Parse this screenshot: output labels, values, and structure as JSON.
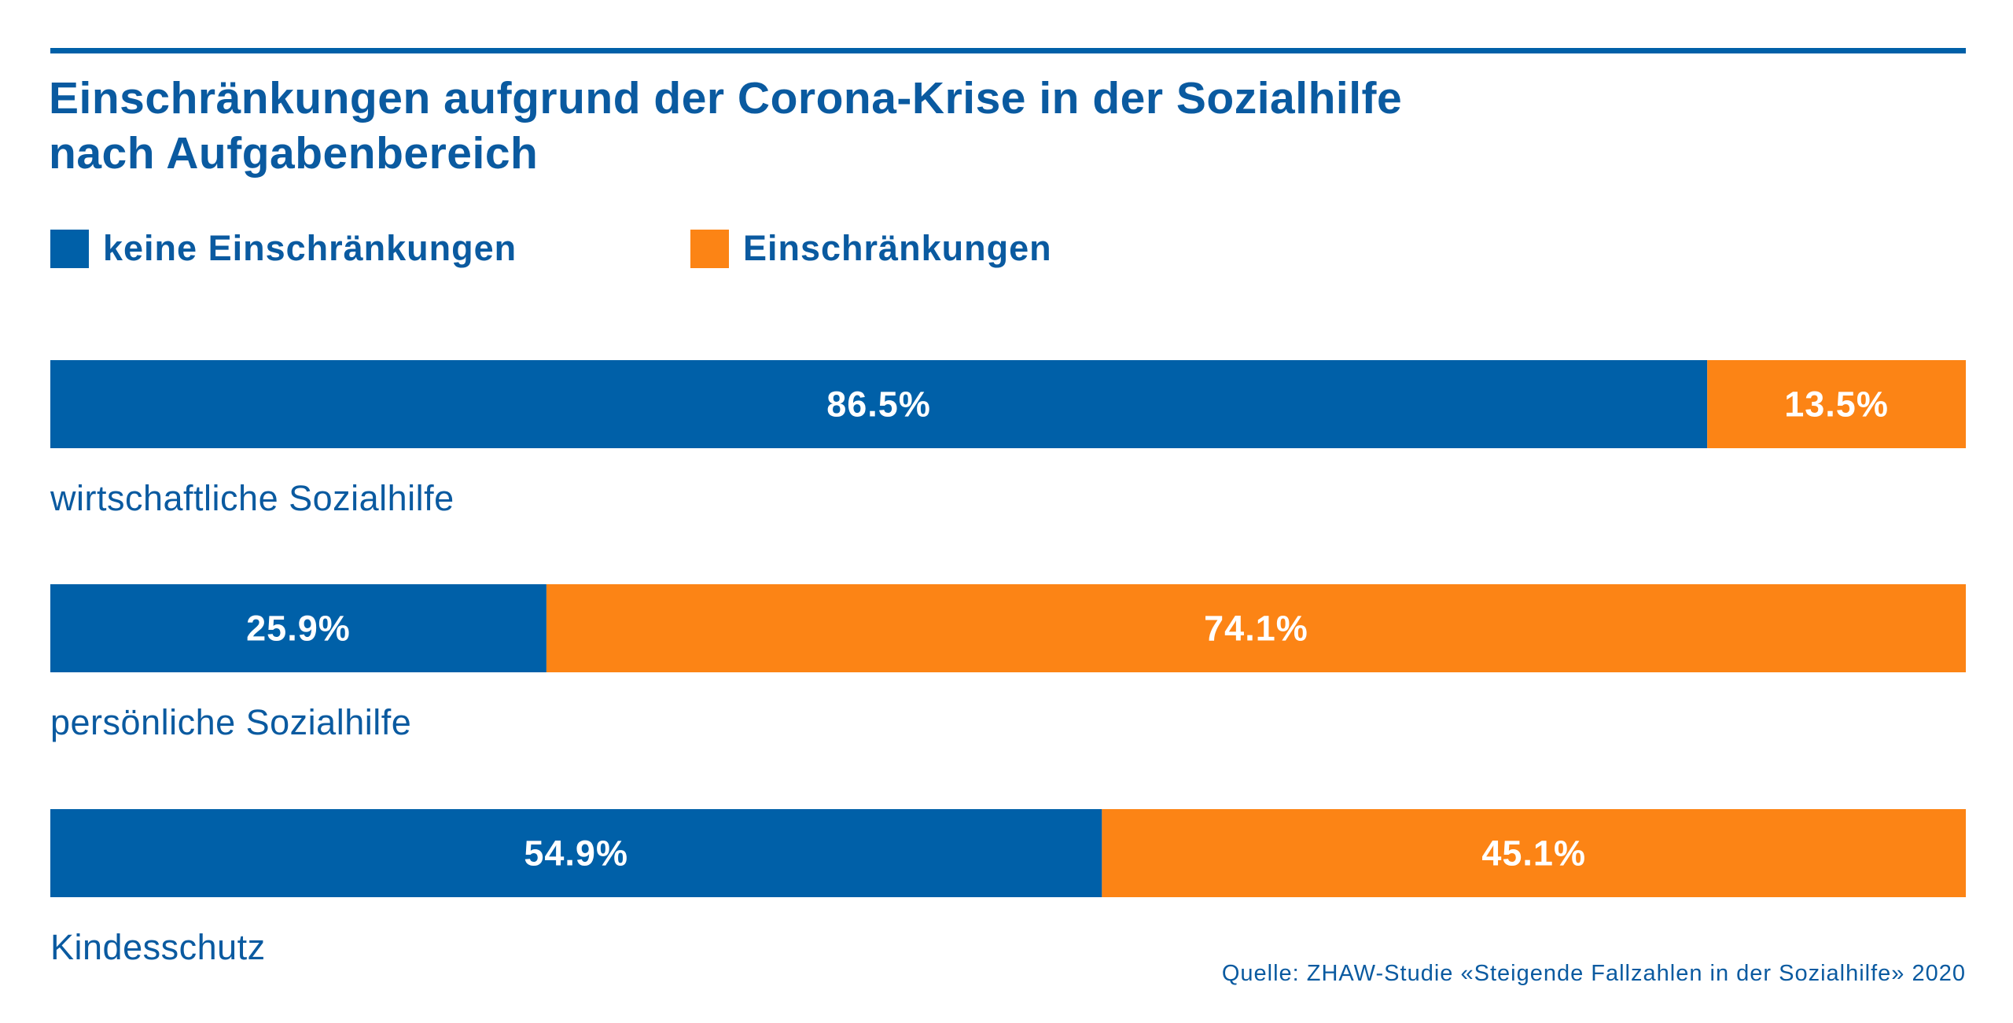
{
  "colors": {
    "blue": "#0060a8",
    "orange": "#fc8415",
    "text_blue": "#0a5aa0"
  },
  "chart_data": {
    "type": "bar",
    "orientation": "horizontal",
    "stacked": true,
    "title": "Einschränkungen aufgrund der Corona-Krise in der Sozialhilfe nach Aufgabenbereich",
    "title_lines": [
      "Einschränkungen aufgrund der Corona-Krise in der Sozialhilfe",
      "nach Aufgabenbereich"
    ],
    "categories": [
      "wirtschaftliche Sozialhilfe",
      "persönliche Sozialhilfe",
      "Kindesschutz"
    ],
    "series": [
      {
        "name": "keine Einschränkungen",
        "values": [
          86.5,
          25.9,
          54.9
        ],
        "labels": [
          "86.5%",
          "25.9%",
          "54.9%"
        ],
        "color": "#0060a8"
      },
      {
        "name": "Einschränkungen",
        "values": [
          13.5,
          74.1,
          45.1
        ],
        "labels": [
          "13.5%",
          "74.1%",
          "45.1%"
        ],
        "color": "#fc8415"
      }
    ],
    "xlim": [
      0,
      100
    ],
    "unit": "%",
    "legend_position": "top-left",
    "grid": false,
    "source": "Quelle:  ZHAW-Studie «Steigende Fallzahlen in der Sozialhilfe» 2020"
  }
}
